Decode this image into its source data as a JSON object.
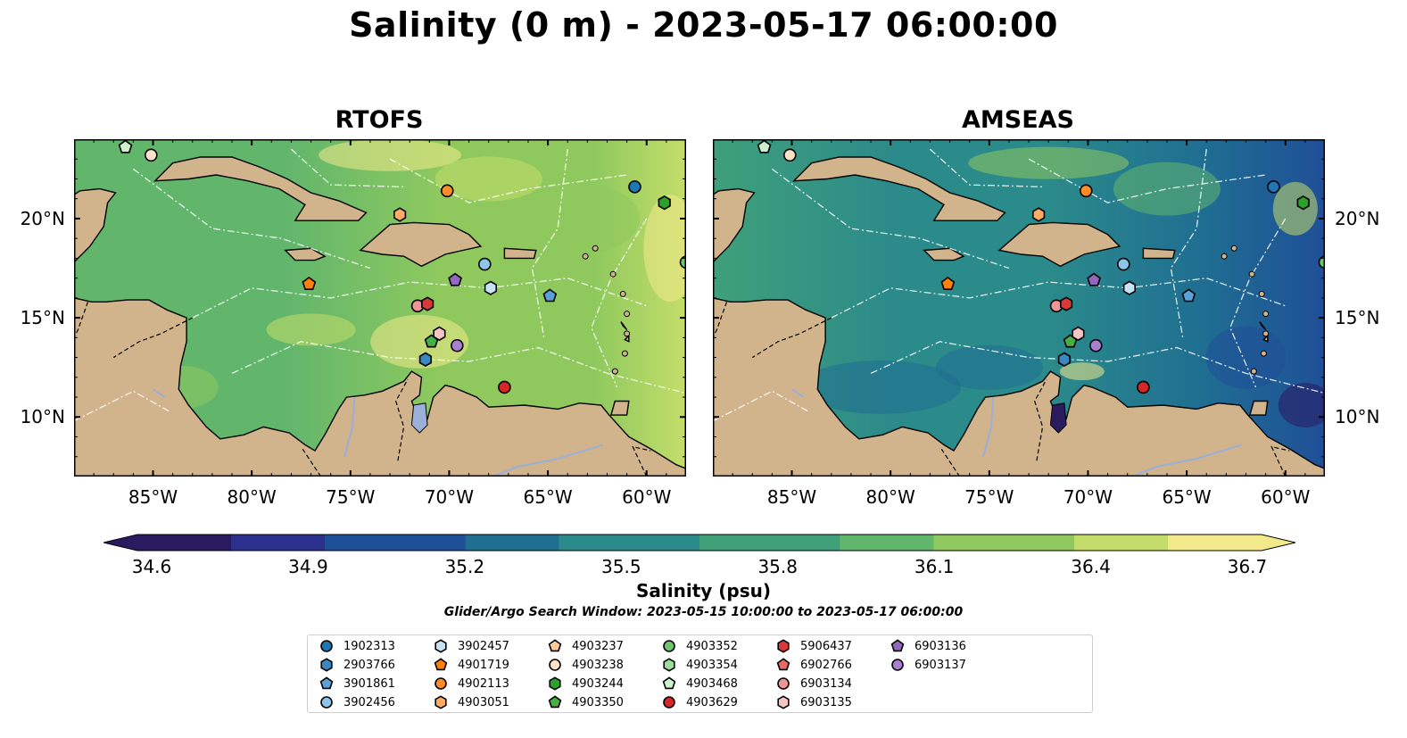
{
  "title": "Salinity (0 m) - 2023-05-17 06:00:00",
  "panels": [
    {
      "title": "RTOFS",
      "scheme": "rtofs"
    },
    {
      "title": "AMSEAS",
      "scheme": "amseas"
    }
  ],
  "axes": {
    "lon_ticks": [
      "85°W",
      "80°W",
      "75°W",
      "70°W",
      "65°W",
      "60°W"
    ],
    "lat_ticks": [
      "20°N",
      "15°N",
      "10°N"
    ],
    "lon_range": [
      -89,
      -58
    ],
    "lat_range": [
      7,
      24
    ]
  },
  "colorbar": {
    "label": "Salinity (psu)",
    "ticks": [
      "34.6",
      "34.9",
      "35.2",
      "35.5",
      "35.8",
      "36.1",
      "36.4",
      "36.7"
    ],
    "colormap": [
      "#2a1a60",
      "#2b2f8e",
      "#1f4f97",
      "#1f6e92",
      "#2b8a8a",
      "#3fa07a",
      "#62b66c",
      "#8fc95e",
      "#c4dd6a",
      "#f2ea8a"
    ]
  },
  "search_window": "Glider/Argo Search Window: 2023-05-15 10:00:00 to 2023-05-17 06:00:00",
  "colors": {
    "land": "#d2b48c",
    "pacific": "#9bb6de",
    "lakes": "#9ab0d8"
  },
  "legend": [
    {
      "id": "1902313",
      "color": "#1f77b4",
      "marker": "circle"
    },
    {
      "id": "2903766",
      "color": "#3c87c2",
      "marker": "hexagon"
    },
    {
      "id": "3901861",
      "color": "#5ba0d8",
      "marker": "pentagon"
    },
    {
      "id": "3902456",
      "color": "#8ec5ea",
      "marker": "circle"
    },
    {
      "id": "3902457",
      "color": "#c6e2f7",
      "marker": "hexagon"
    },
    {
      "id": "4901719",
      "color": "#ff7f0e",
      "marker": "pentagon"
    },
    {
      "id": "4902113",
      "color": "#ff8c2a",
      "marker": "circle"
    },
    {
      "id": "4903051",
      "color": "#ffab63",
      "marker": "hexagon"
    },
    {
      "id": "4903237",
      "color": "#ffc999",
      "marker": "pentagon"
    },
    {
      "id": "4903238",
      "color": "#ffe0c8",
      "marker": "circle"
    },
    {
      "id": "4903244",
      "color": "#2ca02c",
      "marker": "hexagon"
    },
    {
      "id": "4903350",
      "color": "#46af46",
      "marker": "pentagon"
    },
    {
      "id": "4903352",
      "color": "#6fc46f",
      "marker": "circle"
    },
    {
      "id": "4903354",
      "color": "#9ddc9d",
      "marker": "hexagon"
    },
    {
      "id": "4903468",
      "color": "#cdf0cd",
      "marker": "pentagon"
    },
    {
      "id": "4903629",
      "color": "#d62728",
      "marker": "circle"
    },
    {
      "id": "5906437",
      "color": "#d83a3a",
      "marker": "hexagon"
    },
    {
      "id": "6902766",
      "color": "#e46a6a",
      "marker": "pentagon"
    },
    {
      "id": "6903134",
      "color": "#f09595",
      "marker": "circle"
    },
    {
      "id": "6903135",
      "color": "#f7c4c4",
      "marker": "hexagon"
    },
    {
      "id": "6903136",
      "color": "#9467bd",
      "marker": "pentagon"
    },
    {
      "id": "6903137",
      "color": "#a97fd0",
      "marker": "circle"
    }
  ],
  "markers": [
    {
      "id": "4903468",
      "lon": -86.4,
      "lat": 23.6
    },
    {
      "id": "4903238",
      "lon": -85.1,
      "lat": 23.2
    },
    {
      "id": "1902313",
      "lon": -60.6,
      "lat": 21.6
    },
    {
      "id": "4903244",
      "lon": -59.1,
      "lat": 20.8
    },
    {
      "id": "4902113",
      "lon": -70.1,
      "lat": 21.4
    },
    {
      "id": "4903051",
      "lon": -72.5,
      "lat": 20.2
    },
    {
      "id": "4903352",
      "lon": -58.0,
      "lat": 17.8
    },
    {
      "id": "3902456",
      "lon": -68.2,
      "lat": 17.7
    },
    {
      "id": "3902457",
      "lon": -67.9,
      "lat": 16.5
    },
    {
      "id": "6903136",
      "lon": -69.7,
      "lat": 16.9
    },
    {
      "id": "3901861",
      "lon": -64.9,
      "lat": 16.1
    },
    {
      "id": "4901719",
      "lon": -77.1,
      "lat": 16.7
    },
    {
      "id": "6903134",
      "lon": -71.6,
      "lat": 15.6
    },
    {
      "id": "5906437",
      "lon": -71.1,
      "lat": 15.7
    },
    {
      "id": "6903135",
      "lon": -70.5,
      "lat": 14.2
    },
    {
      "id": "4903350",
      "lon": -70.9,
      "lat": 13.8
    },
    {
      "id": "6903137",
      "lon": -69.6,
      "lat": 13.6
    },
    {
      "id": "2903766",
      "lon": -71.2,
      "lat": 12.9
    },
    {
      "id": "4903629",
      "lon": -67.2,
      "lat": 11.5
    }
  ]
}
